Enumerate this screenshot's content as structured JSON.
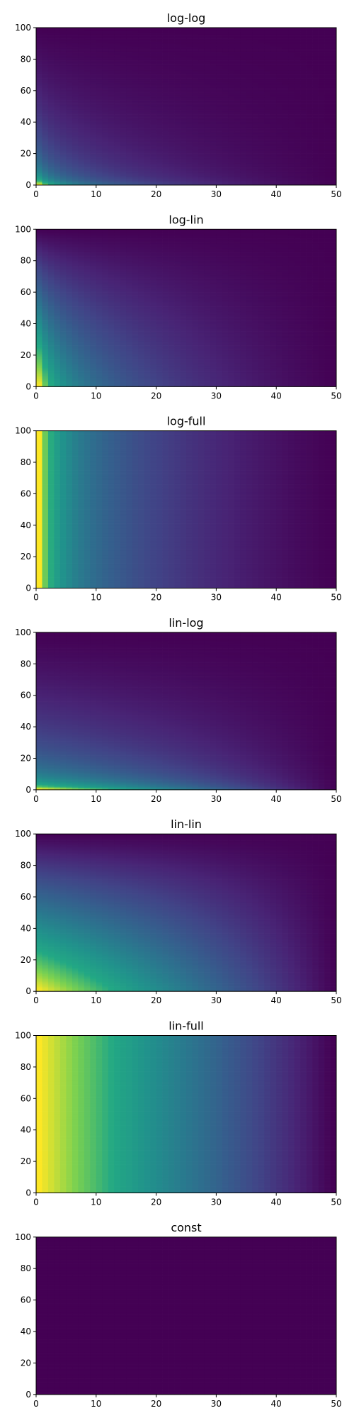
{
  "chart_data": [
    {
      "type": "heatmap",
      "title": "log-log",
      "xlim": [
        0,
        50
      ],
      "ylim": [
        0,
        100
      ],
      "xticks": [
        "0",
        "10",
        "20",
        "30",
        "40",
        "50"
      ],
      "yticks": [
        "0",
        "20",
        "40",
        "60",
        "80",
        "100"
      ],
      "colormap": "viridis",
      "x_function": "log",
      "y_function": "log",
      "grid": false
    },
    {
      "type": "heatmap",
      "title": "log-lin",
      "xlim": [
        0,
        50
      ],
      "ylim": [
        0,
        100
      ],
      "xticks": [
        "0",
        "10",
        "20",
        "30",
        "40",
        "50"
      ],
      "yticks": [
        "0",
        "20",
        "40",
        "60",
        "80",
        "100"
      ],
      "colormap": "viridis",
      "x_function": "log",
      "y_function": "lin",
      "grid": false
    },
    {
      "type": "heatmap",
      "title": "log-full",
      "xlim": [
        0,
        50
      ],
      "ylim": [
        0,
        100
      ],
      "xticks": [
        "0",
        "10",
        "20",
        "30",
        "40",
        "50"
      ],
      "yticks": [
        "0",
        "20",
        "40",
        "60",
        "80",
        "100"
      ],
      "colormap": "viridis",
      "x_function": "log",
      "y_function": "full",
      "grid": false
    },
    {
      "type": "heatmap",
      "title": "lin-log",
      "xlim": [
        0,
        50
      ],
      "ylim": [
        0,
        100
      ],
      "xticks": [
        "0",
        "10",
        "20",
        "30",
        "40",
        "50"
      ],
      "yticks": [
        "0",
        "20",
        "40",
        "60",
        "80",
        "100"
      ],
      "colormap": "viridis",
      "x_function": "lin",
      "y_function": "log",
      "grid": false
    },
    {
      "type": "heatmap",
      "title": "lin-lin",
      "xlim": [
        0,
        50
      ],
      "ylim": [
        0,
        100
      ],
      "xticks": [
        "0",
        "10",
        "20",
        "30",
        "40",
        "50"
      ],
      "yticks": [
        "0",
        "20",
        "40",
        "60",
        "80",
        "100"
      ],
      "colormap": "viridis",
      "x_function": "lin",
      "y_function": "lin",
      "grid": false
    },
    {
      "type": "heatmap",
      "title": "lin-full",
      "xlim": [
        0,
        50
      ],
      "ylim": [
        0,
        100
      ],
      "xticks": [
        "0",
        "10",
        "20",
        "30",
        "40",
        "50"
      ],
      "yticks": [
        "0",
        "20",
        "40",
        "60",
        "80",
        "100"
      ],
      "colormap": "viridis",
      "x_function": "lin",
      "y_function": "full",
      "grid": false
    },
    {
      "type": "heatmap",
      "title": "const",
      "xlim": [
        0,
        50
      ],
      "ylim": [
        0,
        100
      ],
      "xticks": [
        "0",
        "10",
        "20",
        "30",
        "40",
        "50"
      ],
      "yticks": [
        "0",
        "20",
        "40",
        "60",
        "80",
        "100"
      ],
      "colormap": "viridis",
      "x_function": "const",
      "y_function": "const",
      "grid": false
    }
  ]
}
